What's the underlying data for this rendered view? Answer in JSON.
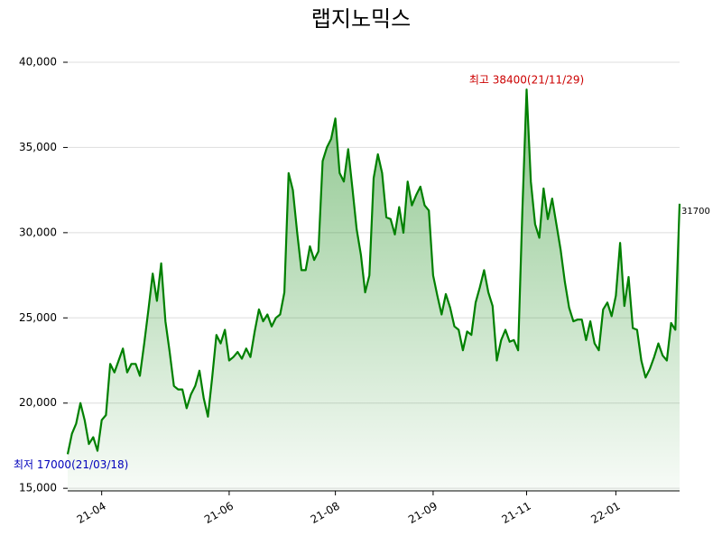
{
  "chart_data": {
    "type": "line",
    "title": "랩지노믹스",
    "color": "#008000",
    "grid": true,
    "values": [
      17000,
      18200,
      18800,
      20000,
      19000,
      17600,
      18000,
      17200,
      19000,
      19300,
      22300,
      21800,
      22500,
      23200,
      21800,
      22300,
      22300,
      21600,
      23500,
      25500,
      27600,
      26000,
      28200,
      24800,
      23000,
      21000,
      20800,
      20800,
      19700,
      20500,
      21000,
      21900,
      20300,
      19200,
      21500,
      24000,
      23500,
      24300,
      22500,
      22700,
      23000,
      22600,
      23200,
      22700,
      24200,
      25500,
      24800,
      25200,
      24500,
      25000,
      25200,
      26500,
      33500,
      32500,
      30000,
      27800,
      27800,
      29200,
      28400,
      28900,
      34200,
      35000,
      35500,
      36700,
      33500,
      33000,
      34900,
      32600,
      30200,
      28700,
      26500,
      27500,
      33200,
      34600,
      33500,
      30900,
      30800,
      29900,
      31500,
      30000,
      33000,
      31600,
      32200,
      32700,
      31600,
      31300,
      27500,
      26300,
      25200,
      26400,
      25600,
      24500,
      24300,
      23100,
      24200,
      24000,
      25900,
      26800,
      27800,
      26500,
      25700,
      22500,
      23700,
      24300,
      23600,
      23700,
      23100,
      31300,
      38400,
      33000,
      30500,
      29700,
      32600,
      30800,
      32000,
      30500,
      29000,
      27100,
      25600,
      24800,
      24900,
      24900,
      23700,
      24800,
      23500,
      23100,
      25500,
      25900,
      25100,
      26300,
      29400,
      25700,
      27400,
      24400,
      24300,
      22500,
      21500,
      22000,
      22700,
      23500,
      22800,
      22500,
      24700,
      24300,
      31700
    ],
    "xlim": [
      0,
      144
    ],
    "xticks": [
      {
        "value": 8,
        "label": "21-04"
      },
      {
        "value": 38,
        "label": "21-06"
      },
      {
        "value": 63,
        "label": "21-08"
      },
      {
        "value": 86,
        "label": "21-09"
      },
      {
        "value": 108,
        "label": "21-11"
      },
      {
        "value": 129,
        "label": "22-01"
      }
    ],
    "ylim": [
      14850,
      40900
    ],
    "yticks": [
      {
        "value": 15000,
        "label": "15,000"
      },
      {
        "value": 20000,
        "label": "20,000"
      },
      {
        "value": 25000,
        "label": "25,000"
      },
      {
        "value": 30000,
        "label": "30,000"
      },
      {
        "value": 35000,
        "label": "35,000"
      },
      {
        "value": 40000,
        "label": "40,000"
      }
    ],
    "annotations": {
      "max": "최고 38400(21/11/29)",
      "min": "최저 17000(21/03/18)",
      "last": "31700"
    },
    "annotation_colors": {
      "max": "#cc0000",
      "min": "#0000bb",
      "last": "#000000"
    }
  }
}
